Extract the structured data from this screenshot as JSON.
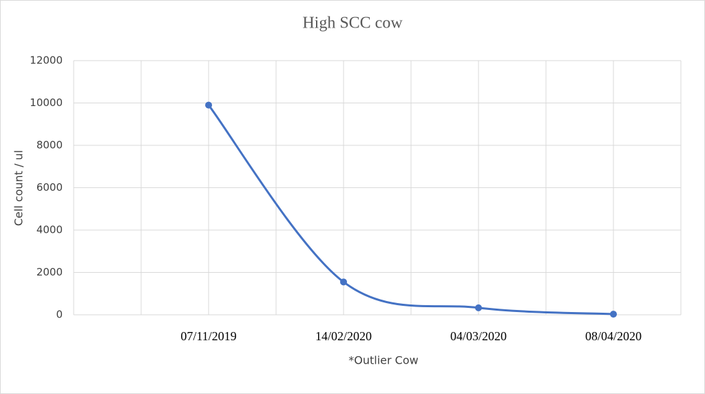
{
  "chart_data": {
    "type": "line",
    "title": "High SCC cow",
    "y_label": "Cell count / ul",
    "x_label": "*Outlier Cow",
    "categories": [
      "07/11/2019",
      "14/02/2020",
      "04/03/2020",
      "08/04/2020"
    ],
    "series": [
      {
        "name": "High SCC cow",
        "color": "#4472c4",
        "values": [
          9900,
          1550,
          330,
          30
        ]
      }
    ],
    "ylim": [
      0,
      12000
    ],
    "yticks": [
      0,
      2000,
      4000,
      6000,
      8000,
      10000,
      12000
    ],
    "grid": true,
    "smooth": true
  }
}
